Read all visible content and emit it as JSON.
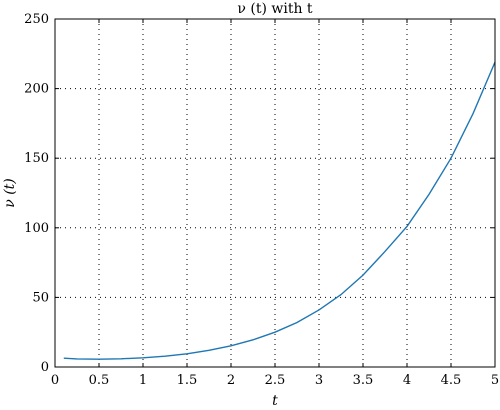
{
  "chart_data": {
    "type": "line",
    "title": "ν (t) with t",
    "xlabel": "t",
    "ylabel": "ν (t)",
    "xlim": [
      0,
      5
    ],
    "ylim": [
      0,
      250
    ],
    "xticks": [
      "0",
      "0.5",
      "1",
      "1.5",
      "2",
      "2.5",
      "3",
      "3.5",
      "4",
      "4.5",
      "5"
    ],
    "yticks": [
      "0",
      "50",
      "100",
      "150",
      "200",
      "250"
    ],
    "grid": true,
    "series": [
      {
        "color": "#1f77b4",
        "x": [
          0.1,
          0.25,
          0.5,
          0.75,
          1.0,
          1.25,
          1.5,
          1.75,
          2.0,
          2.25,
          2.5,
          2.75,
          3.0,
          3.25,
          3.5,
          3.75,
          4.0,
          4.25,
          4.5,
          4.75,
          5.0
        ],
        "y": [
          6.3,
          5.8,
          5.6,
          5.9,
          6.6,
          7.8,
          9.5,
          12.0,
          15.2,
          19.5,
          25.0,
          32.0,
          41.0,
          52.0,
          66.0,
          83.0,
          101.0,
          124.0,
          150.0,
          182.0,
          219.0
        ]
      }
    ]
  }
}
